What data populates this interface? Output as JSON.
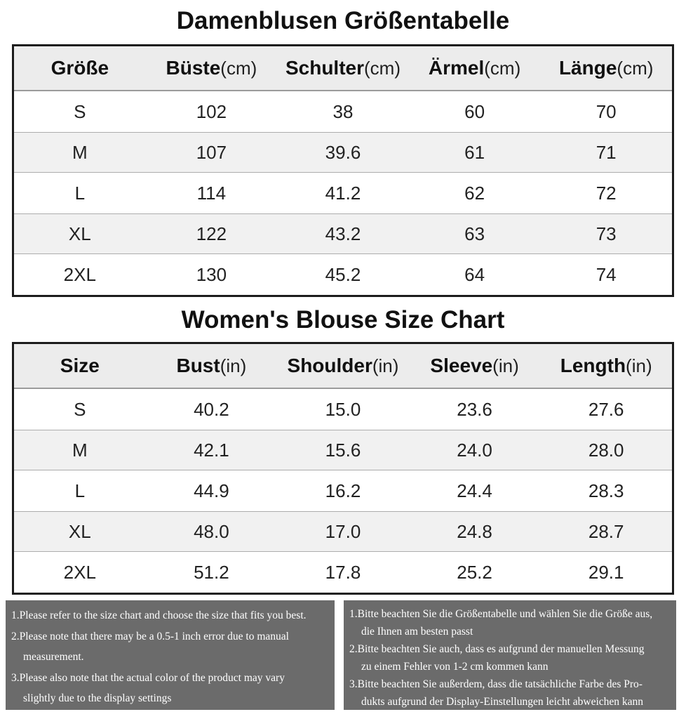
{
  "colors": {
    "table_border": "#1c1c1c",
    "header_bg": "#ececec",
    "alt_row_bg": "#f1f1f1",
    "notes_bg": "#6b6b6b",
    "notes_text": "#ffffff"
  },
  "table_cm": {
    "title": "Damenblusen Größentabelle",
    "headers": [
      {
        "label": "Größe",
        "unit": ""
      },
      {
        "label": "Büste",
        "unit": "(cm)"
      },
      {
        "label": "Schulter",
        "unit": "(cm)"
      },
      {
        "label": "Ärmel",
        "unit": "(cm)"
      },
      {
        "label": "Länge",
        "unit": "(cm)"
      }
    ],
    "rows": [
      [
        "S",
        "102",
        "38",
        "60",
        "70"
      ],
      [
        "M",
        "107",
        "39.6",
        "61",
        "71"
      ],
      [
        "L",
        "114",
        "41.2",
        "62",
        "72"
      ],
      [
        "XL",
        "122",
        "43.2",
        "63",
        "73"
      ],
      [
        "2XL",
        "130",
        "45.2",
        "64",
        "74"
      ]
    ]
  },
  "table_in": {
    "title": "Women's Blouse Size Chart",
    "headers": [
      {
        "label": "Size",
        "unit": ""
      },
      {
        "label": "Bust",
        "unit": "(in)"
      },
      {
        "label": "Shoulder",
        "unit": "(in)"
      },
      {
        "label": "Sleeve",
        "unit": "(in)"
      },
      {
        "label": "Length",
        "unit": "(in)"
      }
    ],
    "rows": [
      [
        "S",
        "40.2",
        "15.0",
        "23.6",
        "27.6"
      ],
      [
        "M",
        "42.1",
        "15.6",
        "24.0",
        "28.0"
      ],
      [
        "L",
        "44.9",
        "16.2",
        "24.4",
        "28.3"
      ],
      [
        "XL",
        "48.0",
        "17.0",
        "24.8",
        "28.7"
      ],
      [
        "2XL",
        "51.2",
        "17.8",
        "25.2",
        "29.1"
      ]
    ]
  },
  "notes_en": {
    "lines": [
      "1.Please refer to the size chart and choose the size that fits you best.",
      "2.Please note that there may be a 0.5-1 inch error due to manual",
      "measurement.",
      "3.Please also note that the actual color of the product may vary",
      "slightly due to the display settings"
    ]
  },
  "notes_de": {
    "lines": [
      "1.Bitte beachten Sie die Größentabelle und wählen Sie die Größe aus,",
      "die Ihnen am besten passt",
      "2.Bitte beachten Sie auch, dass es aufgrund der manuellen Messung",
      "zu einem Fehler von 1-2 cm kommen kann",
      "3.Bitte beachten Sie außerdem, dass die tatsächliche Farbe des Pro-",
      "dukts aufgrund der Display-Einstellungen leicht abweichen kann"
    ]
  }
}
